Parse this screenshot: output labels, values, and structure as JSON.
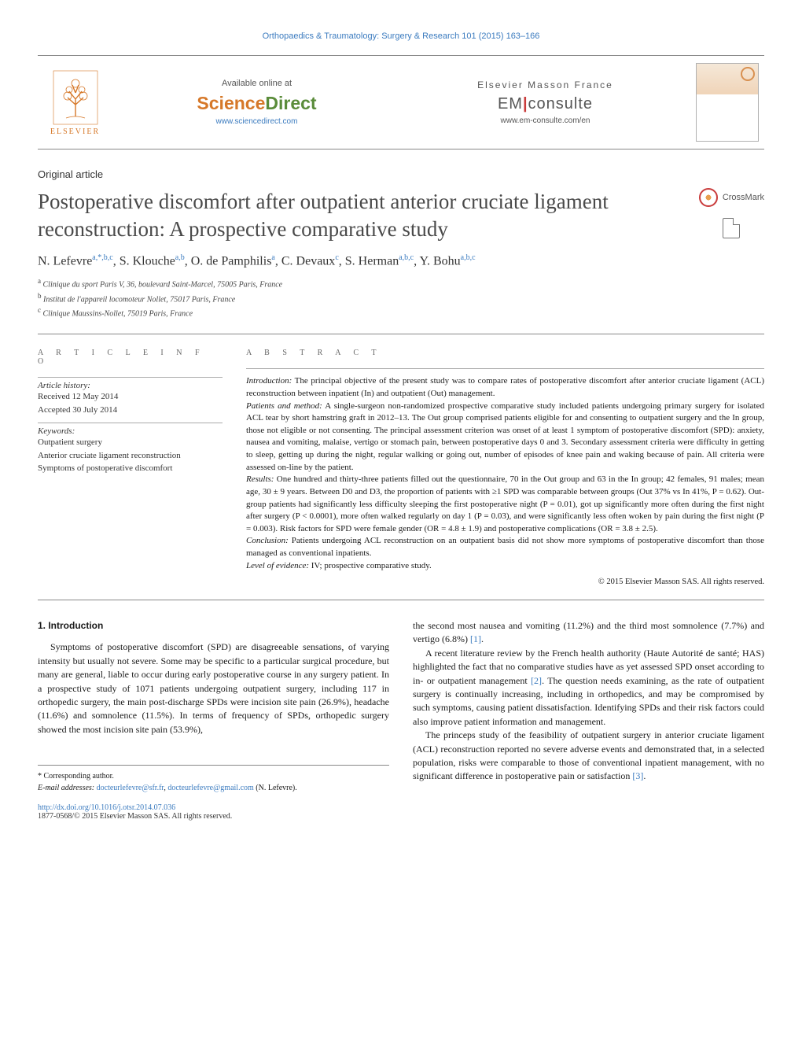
{
  "journal_ref": "Orthopaedics & Traumatology: Surgery & Research 101 (2015) 163–166",
  "top": {
    "elsevier": "ELSEVIER",
    "avail": "Available online at",
    "sd_sci": "Science",
    "sd_dir": "Direct",
    "sd_url": "www.sciencedirect.com",
    "emf": "Elsevier Masson France",
    "em_pre": "EM",
    "em_bar": "|",
    "em_post": "consulte",
    "em_url": "www.em-consulte.com/en"
  },
  "article_type": "Original article",
  "title": "Postoperative discomfort after outpatient anterior cruciate ligament reconstruction: A prospective comparative study",
  "crossmark": "CrossMark",
  "authors_html": "N. Lefevre<sup>a,*,b,c</sup>, S. Klouche<sup>a,b</sup>, O. de Pamphilis<sup>a</sup>, C. Devaux<sup>c</sup>, S. Herman<sup>a,b,c</sup>, Y. Bohu<sup>a,b,c</sup>",
  "aff_a": "Clinique du sport Paris V, 36, boulevard Saint-Marcel, 75005 Paris, France",
  "aff_b": "Institut de l'appareil locomoteur Nollet, 75017 Paris, France",
  "aff_c": "Clinique Maussins-Nollet, 75019 Paris, France",
  "info": {
    "heading": "A R T I C L E   I N F O",
    "hist_label": "Article history:",
    "received": "Received 12 May 2014",
    "accepted": "Accepted 30 July 2014",
    "kw_label": "Keywords:",
    "kw1": "Outpatient surgery",
    "kw2": "Anterior cruciate ligament reconstruction",
    "kw3": "Symptoms of postoperative discomfort"
  },
  "abstract": {
    "heading": "A B S T R A C T",
    "intro_label": "Introduction:",
    "intro": " The principal objective of the present study was to compare rates of postoperative discomfort after anterior cruciate ligament (ACL) reconstruction between inpatient (In) and outpatient (Out) management.",
    "pm_label": "Patients and method:",
    "pm": " A single-surgeon non-randomized prospective comparative study included patients undergoing primary surgery for isolated ACL tear by short hamstring graft in 2012–13. The Out group comprised patients eligible for and consenting to outpatient surgery and the In group, those not eligible or not consenting. The principal assessment criterion was onset of at least 1 symptom of postoperative discomfort (SPD): anxiety, nausea and vomiting, malaise, vertigo or stomach pain, between postoperative days 0 and 3. Secondary assessment criteria were difficulty in getting to sleep, getting up during the night, regular walking or going out, number of episodes of knee pain and waking because of pain. All criteria were assessed on-line by the patient.",
    "res_label": "Results:",
    "res": " One hundred and thirty-three patients filled out the questionnaire, 70 in the Out group and 63 in the In group; 42 females, 91 males; mean age, 30 ± 9 years. Between D0 and D3, the proportion of patients with ≥1 SPD was comparable between groups (Out 37% vs In 41%, P = 0.62). Out-group patients had significantly less difficulty sleeping the first postoperative night (P = 0.01), got up significantly more often during the first night after surgery (P < 0.0001), more often walked regularly on day 1 (P = 0.03), and were significantly less often woken by pain during the first night (P = 0.003). Risk factors for SPD were female gender (OR = 4.8 ± 1.9) and postoperative complications (OR = 3.8 ± 2.5).",
    "con_label": "Conclusion:",
    "con": " Patients undergoing ACL reconstruction on an outpatient basis did not show more symptoms of postoperative discomfort than those managed as conventional inpatients.",
    "loe_label": "Level of evidence:",
    "loe": " IV; prospective comparative study.",
    "copyright": "© 2015 Elsevier Masson SAS. All rights reserved."
  },
  "body": {
    "sec1_head": "1. Introduction",
    "col1_p1": "Symptoms of postoperative discomfort (SPD) are disagreeable sensations, of varying intensity but usually not severe. Some may be specific to a particular surgical procedure, but many are general, liable to occur during early postoperative course in any surgery patient. In a prospective study of 1071 patients undergoing outpatient surgery, including 117 in orthopedic surgery, the main post-discharge SPDs were incision site pain (26.9%), headache (11.6%) and somnolence (11.5%). In terms of frequency of SPDs, orthopedic surgery showed the most incision site pain (53.9%),",
    "col2_p1a": "the second most nausea and vomiting (11.2%) and the third most somnolence (7.7%) and vertigo (6.8%) ",
    "ref1": "[1]",
    "col2_p1b": ".",
    "col2_p2a": "A recent literature review by the French health authority (Haute Autorité de santé; HAS) highlighted the fact that no comparative studies have as yet assessed SPD onset according to in- or outpatient management ",
    "ref2": "[2]",
    "col2_p2b": ". The question needs examining, as the rate of outpatient surgery is continually increasing, including in orthopedics, and may be compromised by such symptoms, causing patient dissatisfaction. Identifying SPDs and their risk factors could also improve patient information and management.",
    "col2_p3a": "The princeps study of the feasibility of outpatient surgery in anterior cruciate ligament (ACL) reconstruction reported no severe adverse events and demonstrated that, in a selected population, risks were comparable to those of conventional inpatient management, with no significant difference in postoperative pain or satisfaction ",
    "ref3": "[3]",
    "col2_p3b": "."
  },
  "footnote": {
    "corr": "* Corresponding author.",
    "email_label": "E-mail addresses: ",
    "email1": "docteurlefevre@sfr.fr",
    "email_sep": ", ",
    "email2": "docteurlefevre@gmail.com",
    "email_tail": " (N. Lefevre)."
  },
  "footer": {
    "doi": "http://dx.doi.org/10.1016/j.otsr.2014.07.036",
    "issn": "1877-0568/© 2015 Elsevier Masson SAS. All rights reserved."
  },
  "colors": {
    "link": "#3b7bbf",
    "orange": "#d67829",
    "green": "#5a8c3a",
    "red": "#c93b3b",
    "border": "#888888"
  }
}
